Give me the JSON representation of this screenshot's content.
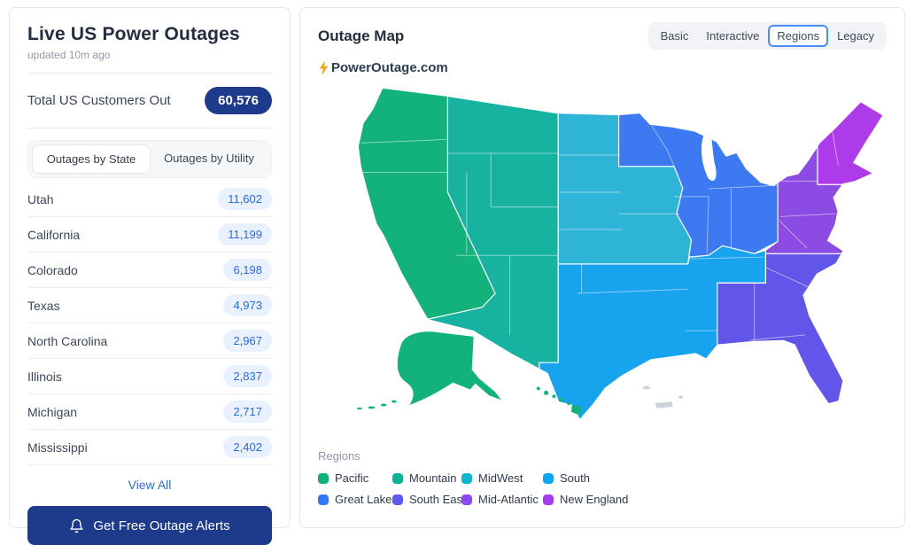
{
  "left_panel": {
    "title": "Live US Power Outages",
    "updated": "updated 10m ago",
    "total_label": "Total US Customers Out",
    "total_value": "60,576",
    "tabs": [
      {
        "label": "Outages by State",
        "active": true
      },
      {
        "label": "Outages by Utility",
        "active": false
      }
    ],
    "states": [
      {
        "name": "Utah",
        "value": "11,602"
      },
      {
        "name": "California",
        "value": "11,199"
      },
      {
        "name": "Colorado",
        "value": "6,198"
      },
      {
        "name": "Texas",
        "value": "4,973"
      },
      {
        "name": "North Carolina",
        "value": "2,967"
      },
      {
        "name": "Illinois",
        "value": "2,837"
      },
      {
        "name": "Michigan",
        "value": "2,717"
      },
      {
        "name": "Mississippi",
        "value": "2,402"
      }
    ],
    "view_all_label": "View All",
    "alerts_button_label": "Get Free Outage Alerts"
  },
  "map_panel": {
    "title": "Outage Map",
    "view_options": [
      {
        "label": "Basic",
        "active": false
      },
      {
        "label": "Interactive",
        "active": false
      },
      {
        "label": "Regions",
        "active": true
      },
      {
        "label": "Legacy",
        "active": false
      }
    ],
    "logo_text": "PowerOutage.com",
    "legend_title": "Regions",
    "regions": [
      {
        "id": "pacific",
        "label": "Pacific",
        "dot_color": "#10b176",
        "map_color": "#13b17b"
      },
      {
        "id": "mountain",
        "label": "Mountain",
        "dot_color": "#0db294",
        "map_color": "#17b2a0"
      },
      {
        "id": "midwest",
        "label": "MidWest",
        "dot_color": "#0fb6cd",
        "map_color": "#2eb4d6"
      },
      {
        "id": "south",
        "label": "South",
        "dot_color": "#0ba7f0",
        "map_color": "#17a3ee"
      },
      {
        "id": "great-lakes",
        "label": "Great Lakes",
        "dot_color": "#327af5",
        "map_color": "#3d79f1"
      },
      {
        "id": "south-east",
        "label": "South East",
        "dot_color": "#5f59f0",
        "map_color": "#6156e9"
      },
      {
        "id": "mid-atlantic",
        "label": "Mid-Atlantic",
        "dot_color": "#8d4af0",
        "map_color": "#8c4be2"
      },
      {
        "id": "new-england",
        "label": "New England",
        "dot_color": "#a93af0",
        "map_color": "#ae3be9"
      }
    ],
    "territories_color": "#ccd2da"
  },
  "colors": {
    "navy": "#1e3a8a",
    "accent": "#2b6be4",
    "pill-bg": "#e8f1fd",
    "pill-text": "#2b6be4",
    "bolt": "#f6a821",
    "opt-border": "#4c8df6"
  }
}
